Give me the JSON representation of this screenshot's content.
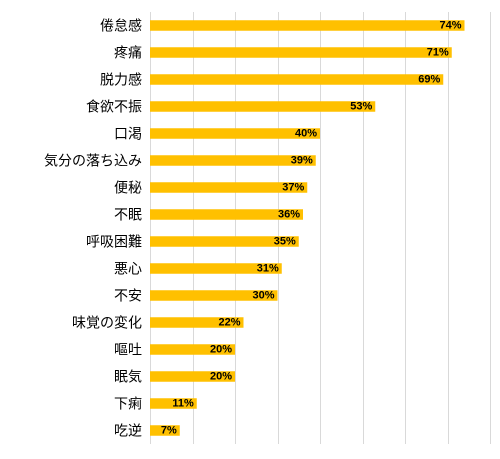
{
  "chart_data": {
    "type": "bar",
    "orientation": "horizontal",
    "categories": [
      "倦怠感",
      "疼痛",
      "脱力感",
      "食欲不振",
      "口渇",
      "気分の落ち込み",
      "便秘",
      "不眠",
      "呼吸困難",
      "悪心",
      "不安",
      "味覚の変化",
      "嘔吐",
      "眠気",
      "下痢",
      "吃逆"
    ],
    "values": [
      74,
      71,
      69,
      53,
      40,
      39,
      37,
      36,
      35,
      31,
      30,
      22,
      20,
      20,
      11,
      7
    ],
    "value_labels": [
      "74%",
      "71%",
      "69%",
      "53%",
      "40%",
      "39%",
      "37%",
      "36%",
      "35%",
      "31%",
      "30%",
      "22%",
      "20%",
      "20%",
      "11%",
      "7%"
    ],
    "xlim": [
      0,
      80
    ],
    "gridlines": [
      0,
      10,
      20,
      30,
      40,
      50,
      60,
      70,
      80
    ],
    "grid": true,
    "legend": "none",
    "bar_color": "#FFC000",
    "grid_color": "#D9D9D9"
  }
}
